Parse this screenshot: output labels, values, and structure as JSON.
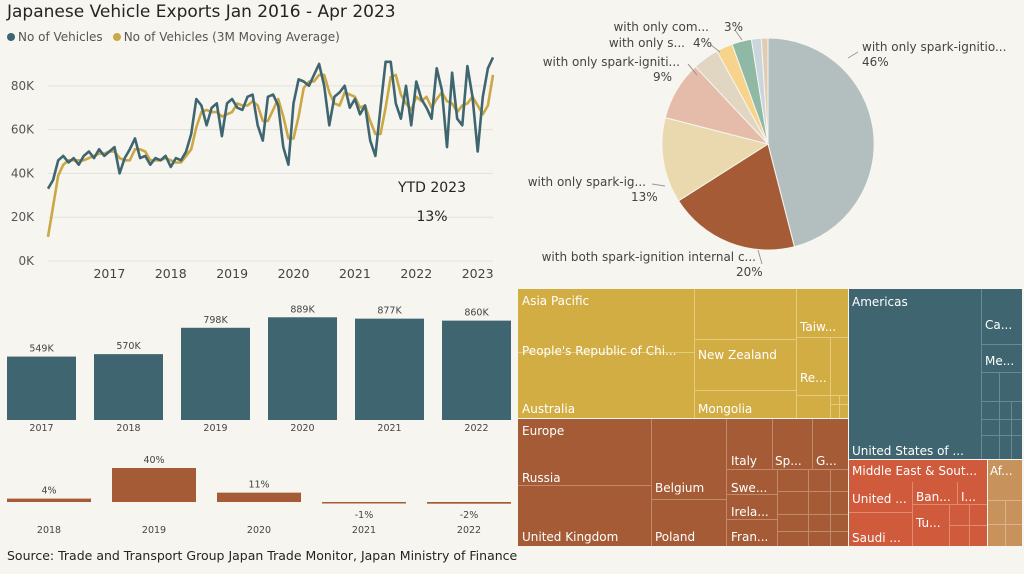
{
  "title": "Japanese Vehicle Exports Jan 2016 - Apr 2023",
  "legend": [
    {
      "label": "No of Vehicles",
      "color": "#3f6670"
    },
    {
      "label": "No of Vehicles (3M Moving Average)",
      "color": "#c9a845"
    }
  ],
  "ytd": {
    "label": "YTD 2023",
    "value": "13%"
  },
  "source": "Source: Trade and Transport Group Japan Trade Monitor, Japan Ministry of Finance",
  "colors": {
    "teal": "#3f6670",
    "gold": "#c9a845",
    "rust": "#a55c36",
    "bg": "#f7f5f0"
  },
  "chart_data": [
    {
      "type": "line",
      "x_tick_labels": [
        "2017",
        "2018",
        "2019",
        "2020",
        "2021",
        "2022",
        "2023"
      ],
      "y_tick_labels": [
        "0K",
        "20K",
        "40K",
        "60K",
        "80K"
      ],
      "ylim": [
        0,
        95000
      ],
      "series": [
        {
          "name": "No of Vehicles",
          "color": "#3f6670",
          "values": [
            33000,
            37000,
            46000,
            48000,
            45000,
            47000,
            44000,
            48000,
            50000,
            47000,
            51000,
            48000,
            50000,
            52000,
            40000,
            47000,
            51000,
            56000,
            47000,
            48000,
            44000,
            47000,
            46000,
            48000,
            43000,
            47000,
            46000,
            50000,
            58000,
            74000,
            71000,
            62000,
            70000,
            72000,
            57000,
            72000,
            74000,
            70000,
            69000,
            75000,
            76000,
            62000,
            55000,
            75000,
            76000,
            71000,
            52000,
            44000,
            72000,
            83000,
            82000,
            80000,
            85000,
            90000,
            80000,
            62000,
            75000,
            77000,
            80000,
            70000,
            74000,
            67000,
            71000,
            55000,
            48000,
            70000,
            91000,
            91000,
            72000,
            65000,
            80000,
            62000,
            82000,
            74000,
            70000,
            65000,
            88000,
            78000,
            52000,
            86000,
            65000,
            62000,
            89000,
            75000,
            50000,
            75000,
            88000,
            93000
          ]
        },
        {
          "name": "No of Vehicles (3M Moving Average)",
          "color": "#c9a845",
          "values": [
            11000,
            25000,
            39000,
            44000,
            46000,
            46000,
            46000,
            46000,
            47000,
            48000,
            49000,
            49000,
            50000,
            50000,
            47000,
            46000,
            46000,
            51000,
            51000,
            50000,
            46000,
            46000,
            46000,
            47000,
            46000,
            45000,
            45000,
            48000,
            51000,
            61000,
            68000,
            69000,
            68000,
            68000,
            66000,
            67000,
            68000,
            72000,
            71000,
            71000,
            73000,
            71000,
            64000,
            64000,
            69000,
            74000,
            66000,
            56000,
            56000,
            66000,
            79000,
            82000,
            82000,
            85000,
            85000,
            77000,
            72000,
            71000,
            77000,
            76000,
            75000,
            70000,
            71000,
            64000,
            58000,
            58000,
            70000,
            84000,
            85000,
            76000,
            72000,
            69000,
            75000,
            73000,
            75000,
            70000,
            74000,
            77000,
            73000,
            72000,
            68000,
            71000,
            72000,
            75000,
            71000,
            67000,
            71000,
            85000
          ]
        }
      ]
    },
    {
      "type": "bar",
      "categories": [
        "2017",
        "2018",
        "2019",
        "2020",
        "2021",
        "2022"
      ],
      "values": [
        549,
        570,
        798,
        889,
        877,
        860
      ],
      "labels": [
        "549K",
        "570K",
        "798K",
        "889K",
        "877K",
        "860K"
      ],
      "ylim": [
        0,
        900
      ]
    },
    {
      "type": "bar",
      "categories": [
        "2018",
        "2019",
        "2020",
        "2021",
        "2022"
      ],
      "values": [
        4,
        40,
        11,
        -1,
        -2
      ],
      "labels": [
        "4%",
        "40%",
        "11%",
        "-1%",
        "-2%"
      ]
    },
    {
      "type": "pie",
      "slices": [
        {
          "label": "with only spark-ignitio...",
          "pct_label": "46%",
          "value": 46,
          "color": "#b3bfbe"
        },
        {
          "label": "with both spark-ignition internal c...",
          "pct_label": "20%",
          "value": 20,
          "color": "#a55c36"
        },
        {
          "label": "with only spark-ig...",
          "pct_label": "13%",
          "value": 13,
          "color": "#ead9ae"
        },
        {
          "label": "with only spark-igniti...",
          "pct_label": "9%",
          "value": 9,
          "color": "#e5bbaa"
        },
        {
          "label": "with only s...",
          "pct_label": "4%",
          "value": 4,
          "color": "#e0d6c2"
        },
        {
          "label": "",
          "pct_label": "",
          "value": 2.5,
          "color": "#f7d38c"
        },
        {
          "label": "with only com...",
          "pct_label": "3%",
          "value": 3,
          "color": "#8fb9a4"
        },
        {
          "label": "",
          "pct_label": "",
          "value": 1.5,
          "color": "#c9d6dc"
        },
        {
          "label": "",
          "pct_label": "",
          "value": 1,
          "color": "#e0ccb3"
        }
      ]
    },
    {
      "type": "treemap",
      "groups": [
        {
          "name": "Asia Pacific",
          "color": "#d2ad44",
          "items": [
            "People's Republic of Chi...",
            "New Zealand",
            "Taiw...",
            "Re...",
            "Australia",
            "Mongolia"
          ]
        },
        {
          "name": "Americas",
          "color": "#3f6670",
          "items": [
            "United States of ...",
            "Ca...",
            "Me..."
          ]
        },
        {
          "name": "Europe",
          "color": "#a55c36",
          "items": [
            "Russia",
            "Belgium",
            "Italy",
            "Sp...",
            "G...",
            "Swe...",
            "Irela...",
            "Fran...",
            "United Kingdom",
            "Poland"
          ]
        },
        {
          "name": "Middle East & Sout...",
          "color": "#d05a3c",
          "items": [
            "United ...",
            "Ban...",
            "I...",
            "Tu...",
            "Saudi ..."
          ]
        },
        {
          "name": "Af...",
          "color": "#c7925c",
          "items": []
        }
      ]
    }
  ]
}
